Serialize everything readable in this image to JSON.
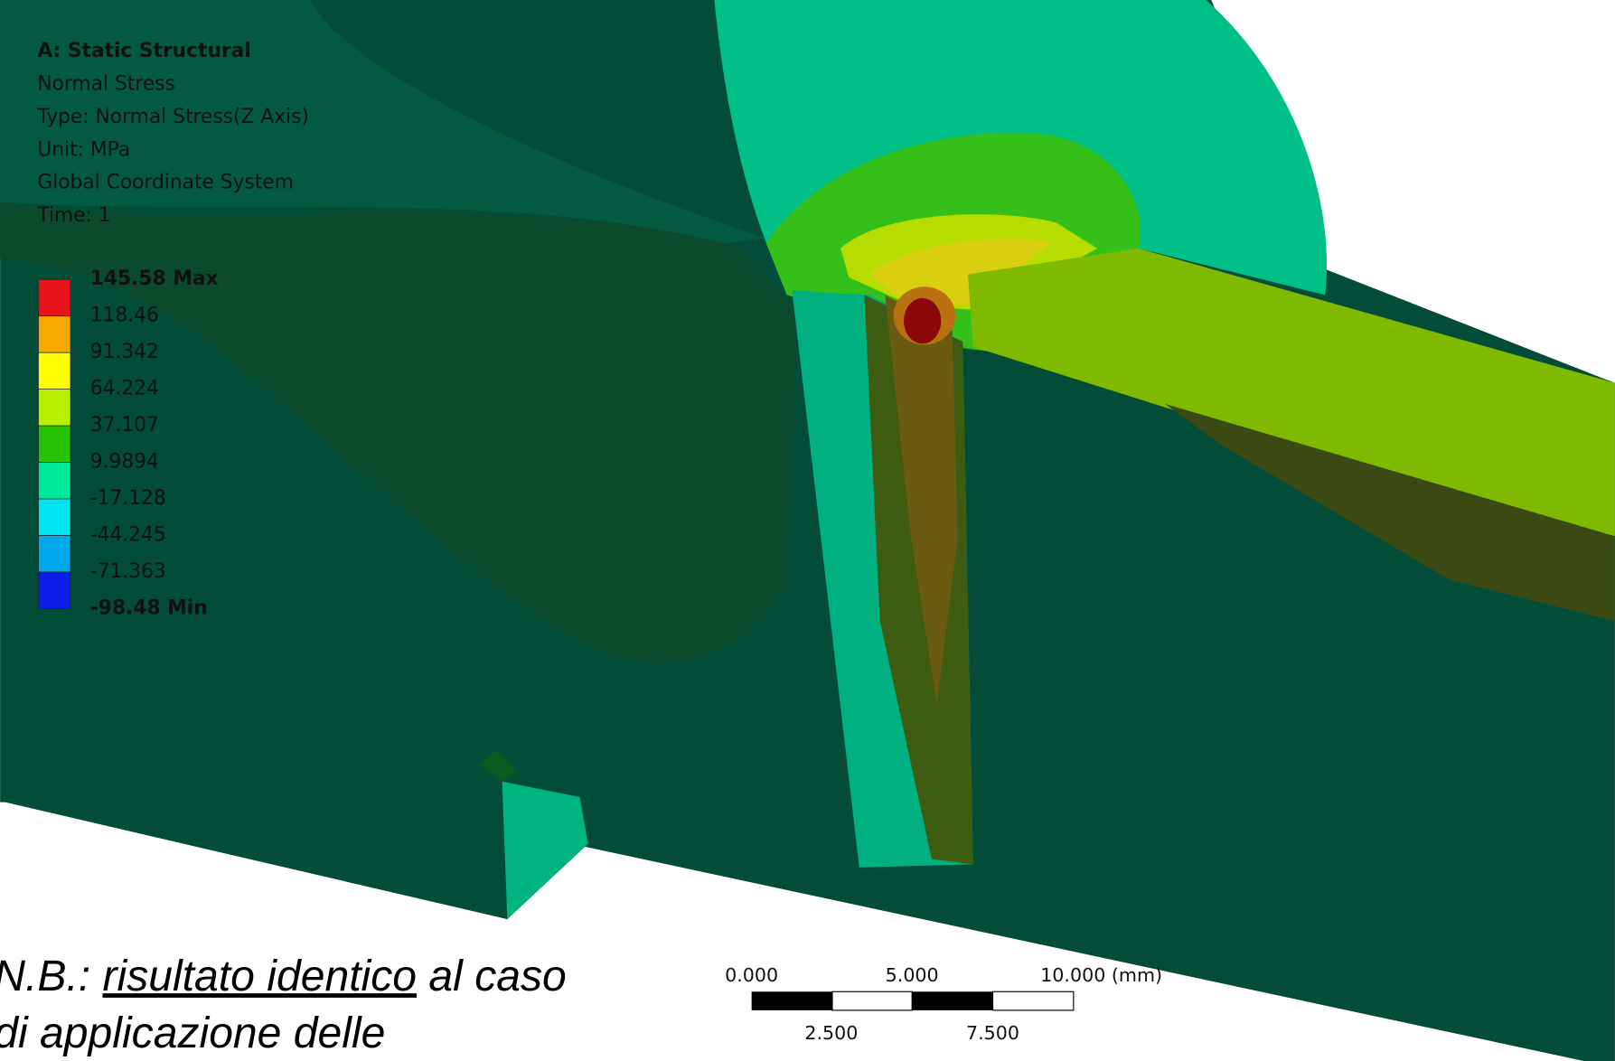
{
  "header": {
    "lines": [
      "A: Static Structural",
      "Normal Stress",
      "Type: Normal Stress(Z Axis)",
      "Unit: MPa",
      "Global Coordinate System",
      "Time: 1"
    ]
  },
  "legend": {
    "labels": [
      "145.58 Max",
      "118.46",
      "91.342",
      "64.224",
      "37.107",
      "9.9894",
      "-17.128",
      "-44.245",
      "-71.363",
      "-98.48 Min"
    ],
    "colors": [
      "#e8141c",
      "#f5a800",
      "#ffff00",
      "#b8f000",
      "#26c400",
      "#00e89a",
      "#00e6f0",
      "#00a8ec",
      "#0a1ee8"
    ]
  },
  "scale_bar": {
    "top_labels": [
      "0.000",
      "5.000",
      "10.000 (mm)"
    ],
    "bottom_labels": [
      "2.500",
      "7.500"
    ]
  },
  "note": {
    "prefix": "N.B.: ",
    "underlined": "risultato identico",
    "suffix": " al caso",
    "line2": "di applicazione delle"
  }
}
